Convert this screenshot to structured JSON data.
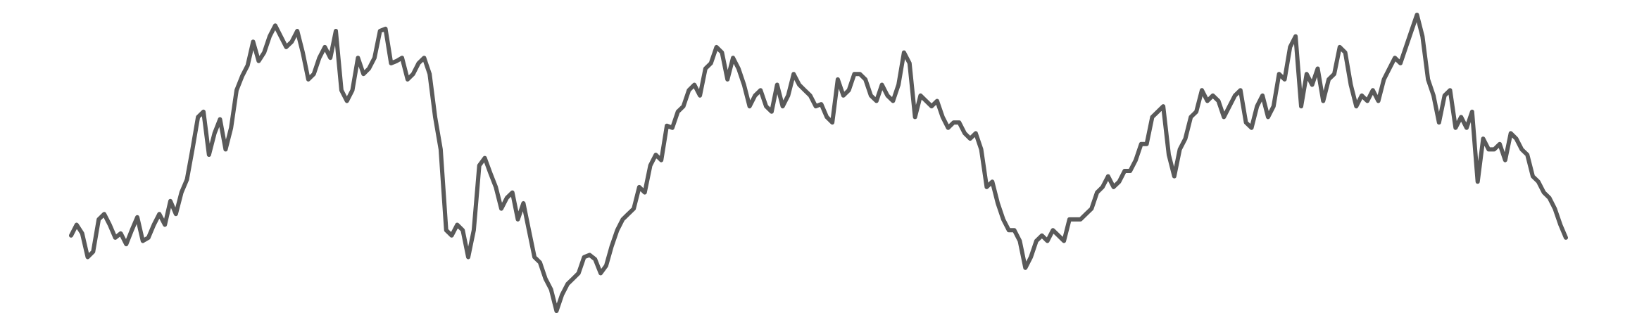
{
  "chart_data": {
    "type": "line",
    "color": "#5a5a5a",
    "values": [
      80,
      90,
      82,
      60,
      65,
      95,
      100,
      90,
      78,
      82,
      72,
      85,
      97,
      75,
      78,
      90,
      100,
      90,
      112,
      100,
      120,
      132,
      160,
      190,
      195,
      155,
      175,
      188,
      160,
      180,
      215,
      228,
      238,
      260,
      242,
      250,
      265,
      275,
      265,
      255,
      260,
      270,
      250,
      225,
      230,
      245,
      255,
      245,
      270,
      215,
      205,
      215,
      245,
      230,
      235,
      245,
      270,
      272,
      240,
      242,
      245,
      225,
      230,
      240,
      245,
      230,
      190,
      160,
      85,
      80,
      90,
      85,
      60,
      85,
      145,
      152,
      138,
      125,
      105,
      115,
      120,
      95,
      110,
      85,
      60,
      55,
      40,
      30,
      10,
      25,
      35,
      40,
      45,
      60,
      62,
      58,
      45,
      52,
      70,
      85,
      95,
      100,
      105,
      125,
      120,
      145,
      155,
      150,
      182,
      180,
      195,
      200,
      215,
      220,
      210,
      235,
      240,
      255,
      250,
      225,
      245,
      235,
      220,
      200,
      210,
      215,
      200,
      195,
      220,
      200,
      210,
      230,
      220,
      215,
      210,
      200,
      202,
      190,
      185,
      225,
      210,
      215,
      230,
      230,
      225,
      210,
      205,
      220,
      210,
      205,
      220,
      250,
      240,
      190,
      210,
      205,
      200,
      205,
      190,
      180,
      185,
      185,
      175,
      170,
      175,
      160,
      125,
      130,
      110,
      95,
      85,
      85,
      75,
      50,
      60,
      75,
      80,
      75,
      85,
      80,
      75,
      95,
      95,
      95,
      100,
      105,
      120,
      125,
      135,
      125,
      130,
      140,
      140,
      150,
      165,
      165,
      190,
      195,
      200,
      155,
      135,
      160,
      170,
      190,
      195,
      215,
      205,
      210,
      205,
      190,
      200,
      210,
      215,
      185,
      180,
      200,
      210,
      190,
      200,
      230,
      225,
      255,
      265,
      200,
      230,
      220,
      235,
      205,
      225,
      230,
      255,
      250,
      220,
      200,
      210,
      205,
      215,
      205,
      225,
      235,
      245,
      240,
      255,
      270,
      285,
      265,
      225,
      210,
      185,
      210,
      215,
      180,
      190,
      180,
      195,
      130,
      170,
      160,
      160,
      165,
      150,
      175,
      170,
      160,
      155,
      135,
      130,
      120,
      115,
      105,
      90,
      78
    ]
  }
}
